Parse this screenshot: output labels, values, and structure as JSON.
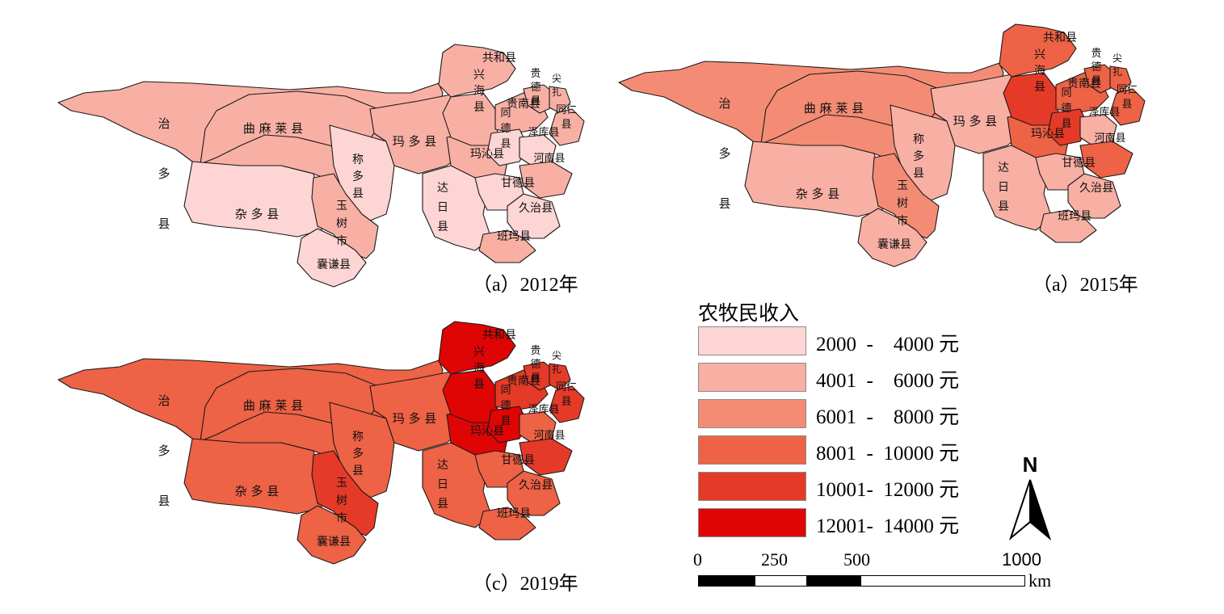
{
  "legend": {
    "title": "农牧民收入",
    "classes": [
      {
        "range": "2000  -    4000 元",
        "color": "#fdd5d4"
      },
      {
        "range": "4001  -    6000 元",
        "color": "#f8b0a4"
      },
      {
        "range": "6001  -    8000 元",
        "color": "#f48c75"
      },
      {
        "range": "8001  -  10000 元",
        "color": "#ee6245"
      },
      {
        "range": "10001-  12000 元",
        "color": "#e53a27"
      },
      {
        "range": "12001-  14000 元",
        "color": "#df0505"
      }
    ]
  },
  "scale": {
    "ticks": [
      "0",
      "250",
      "500",
      "1000"
    ],
    "unit": "km"
  },
  "north": "N",
  "panels": [
    {
      "caption": "（a）2012年",
      "classes": {
        "zhiduo": 1,
        "qumalai": 1,
        "zaduo": 0,
        "chengduo": 0,
        "yushu": 1,
        "nangqian": 0,
        "maduo": 1,
        "dari": 0,
        "maqin": 1,
        "gande": 0,
        "jiuzhi": 0,
        "banma": 1,
        "gonghe": 1,
        "xinghai": 1,
        "guinan": 1,
        "tongde": 0,
        "zeku": 0,
        "henan": 1,
        "guide": 1,
        "jianzha": 1,
        "tongren": 1
      }
    },
    {
      "caption": "（a）2015年",
      "classes": {
        "zhiduo": 2,
        "qumalai": 2,
        "zaduo": 1,
        "chengduo": 1,
        "yushu": 2,
        "nangqian": 1,
        "maduo": 1,
        "dari": 1,
        "maqin": 3,
        "gande": 1,
        "jiuzhi": 1,
        "banma": 1,
        "gonghe": 3,
        "xinghai": 4,
        "guinan": 3,
        "tongde": 4,
        "zeku": 1,
        "henan": 3,
        "guide": 3,
        "jianzha": 3,
        "tongren": 3
      }
    },
    {
      "caption": "（c）2019年",
      "classes": {
        "zhiduo": 3,
        "qumalai": 3,
        "zaduo": 3,
        "chengduo": 3,
        "yushu": 4,
        "nangqian": 3,
        "maduo": 3,
        "dari": 3,
        "maqin": 5,
        "gande": 3,
        "jiuzhi": 3,
        "banma": 3,
        "gonghe": 5,
        "xinghai": 5,
        "guinan": 4,
        "tongde": 5,
        "zeku": 3,
        "henan": 4,
        "guide": 4,
        "jianzha": 4,
        "tongren": 4
      }
    }
  ],
  "counties": [
    {
      "id": "zhiduo",
      "label": "治\n多\n县"
    },
    {
      "id": "qumalai",
      "label": "曲 麻 莱 县"
    },
    {
      "id": "zaduo",
      "label": "杂 多 县"
    },
    {
      "id": "chengduo",
      "label": "称\n多\n县"
    },
    {
      "id": "yushu",
      "label": "玉\n树\n市"
    },
    {
      "id": "nangqian",
      "label": "囊谦县"
    },
    {
      "id": "maduo",
      "label": "玛 多 县"
    },
    {
      "id": "dari",
      "label": "达\n日\n县"
    },
    {
      "id": "maqin",
      "label": "玛沁县"
    },
    {
      "id": "gande",
      "label": "甘德县"
    },
    {
      "id": "jiuzhi",
      "label": "久治县"
    },
    {
      "id": "banma",
      "label": "班玛县"
    },
    {
      "id": "gonghe",
      "label": "共和县"
    },
    {
      "id": "xinghai",
      "label": "兴\n海\n县"
    },
    {
      "id": "guinan",
      "label": "贵南县"
    },
    {
      "id": "tongde",
      "label": "同\n德\n县"
    },
    {
      "id": "zeku",
      "label": "泽库县"
    },
    {
      "id": "henan",
      "label": "河南县"
    },
    {
      "id": "guide",
      "label": "贵\n德\n县"
    },
    {
      "id": "jianzha",
      "label": "尖\n扎"
    },
    {
      "id": "tongren",
      "label": "同仁\n县"
    }
  ]
}
